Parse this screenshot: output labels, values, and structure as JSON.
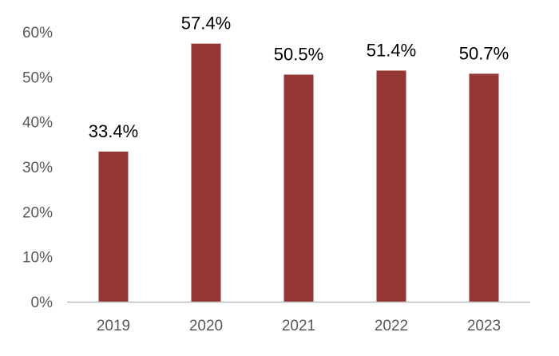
{
  "chart_data": {
    "type": "bar",
    "title": "",
    "xlabel": "",
    "ylabel": "",
    "categories": [
      "2019",
      "2020",
      "2021",
      "2022",
      "2023"
    ],
    "values": [
      33.4,
      57.4,
      50.5,
      51.4,
      50.7
    ],
    "data_labels": [
      "33.4%",
      "57.4%",
      "50.5%",
      "51.4%",
      "50.7%"
    ],
    "ylim": [
      0,
      60
    ],
    "yticks": [
      0,
      10,
      20,
      30,
      40,
      50,
      60
    ],
    "ytick_labels": [
      "0%",
      "10%",
      "20%",
      "30%",
      "40%",
      "50%",
      "60%"
    ],
    "grid": false,
    "legend": "none",
    "colors": {
      "bar": "#943634",
      "axis_line": "#bfbfbf",
      "tick_text": "#595959",
      "data_label_text": "#000000"
    }
  }
}
